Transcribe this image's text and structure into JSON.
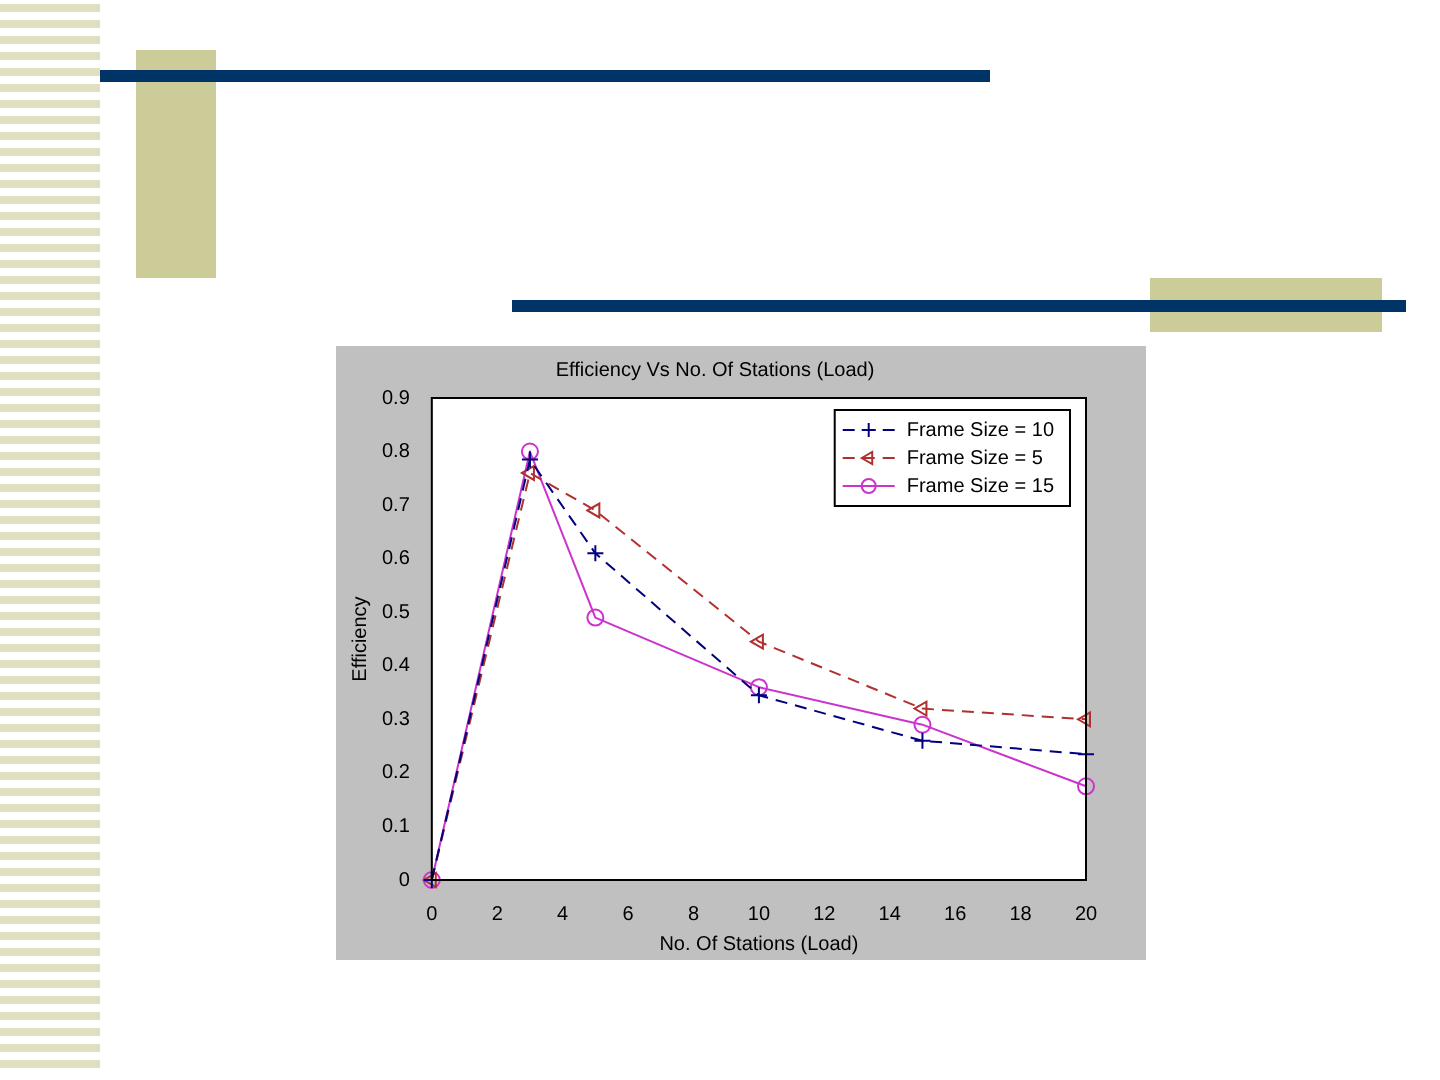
{
  "chart_data": {
    "type": "line",
    "title": "Efficiency Vs No. Of Stations (Load)",
    "xlabel": "No. Of Stations (Load)",
    "ylabel": "Efficiency",
    "x": [
      0,
      3,
      5,
      10,
      15,
      20
    ],
    "series": [
      {
        "name": "Frame Size = 10",
        "color": "#000080",
        "values": [
          0,
          0.785,
          0.61,
          0.345,
          0.26,
          0.235
        ],
        "marker": "cross",
        "line_style": "dashed"
      },
      {
        "name": "Frame Size = 5",
        "color": "#b03030",
        "values": [
          0,
          0.76,
          0.69,
          0.445,
          0.32,
          0.3
        ],
        "marker": "triangle",
        "line_style": "dashed"
      },
      {
        "name": "Frame Size = 15",
        "color": "#cc33cc",
        "values": [
          0,
          0.8,
          0.49,
          0.36,
          0.29,
          0.175
        ],
        "marker": "circle",
        "line_style": "solid"
      }
    ],
    "xlim": [
      0,
      20
    ],
    "xticks": [
      0,
      2,
      4,
      6,
      8,
      10,
      12,
      14,
      16,
      18,
      20
    ],
    "ylim": [
      0,
      0.9
    ],
    "yticks": [
      0,
      0.1,
      0.2,
      0.3,
      0.4,
      0.5,
      0.6,
      0.7,
      0.8,
      0.9
    ],
    "grid": false,
    "legend": "top right"
  }
}
